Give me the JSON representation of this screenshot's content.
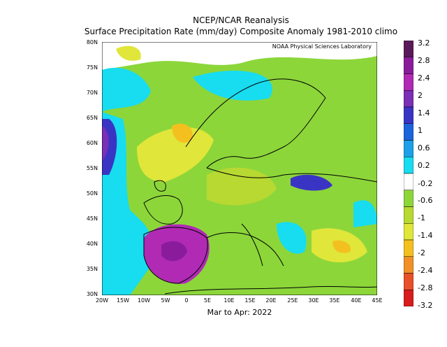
{
  "header": {
    "line1": "NCEP/NCAR Reanalysis",
    "line2": "Surface Precipitation Rate (mm/day) Composite Anomaly 1981-2010 climo"
  },
  "credit": "NOAA Physical Sciences Laboratory",
  "period": "Mar to Apr: 2022",
  "axes": {
    "lat_labels": [
      "80N",
      "75N",
      "70N",
      "65N",
      "60N",
      "55N",
      "50N",
      "45N",
      "40N",
      "35N",
      "30N"
    ],
    "lon_labels": [
      "20W",
      "15W",
      "10W",
      "5W",
      "0",
      "5E",
      "10E",
      "15E",
      "20E",
      "25E",
      "30E",
      "35E",
      "40E",
      "45E"
    ]
  },
  "colorbar": {
    "labels": [
      "3.2",
      "2.8",
      "2.4",
      "2",
      "1.4",
      "1",
      "0.6",
      "0.2",
      "-0.2",
      "-0.6",
      "-1",
      "-1.4",
      "-2",
      "-2.4",
      "-2.8",
      "-3.2"
    ],
    "colors": [
      "#5a1a5a",
      "#8a1c9c",
      "#b02ab4",
      "#7a2fb6",
      "#3a34c4",
      "#1c64dc",
      "#1ca0e8",
      "#18dcf0",
      "#ffffff",
      "#8cd63a",
      "#b8d832",
      "#e0e63a",
      "#f4c020",
      "#f09028",
      "#e8502a",
      "#d81c1c"
    ]
  }
}
